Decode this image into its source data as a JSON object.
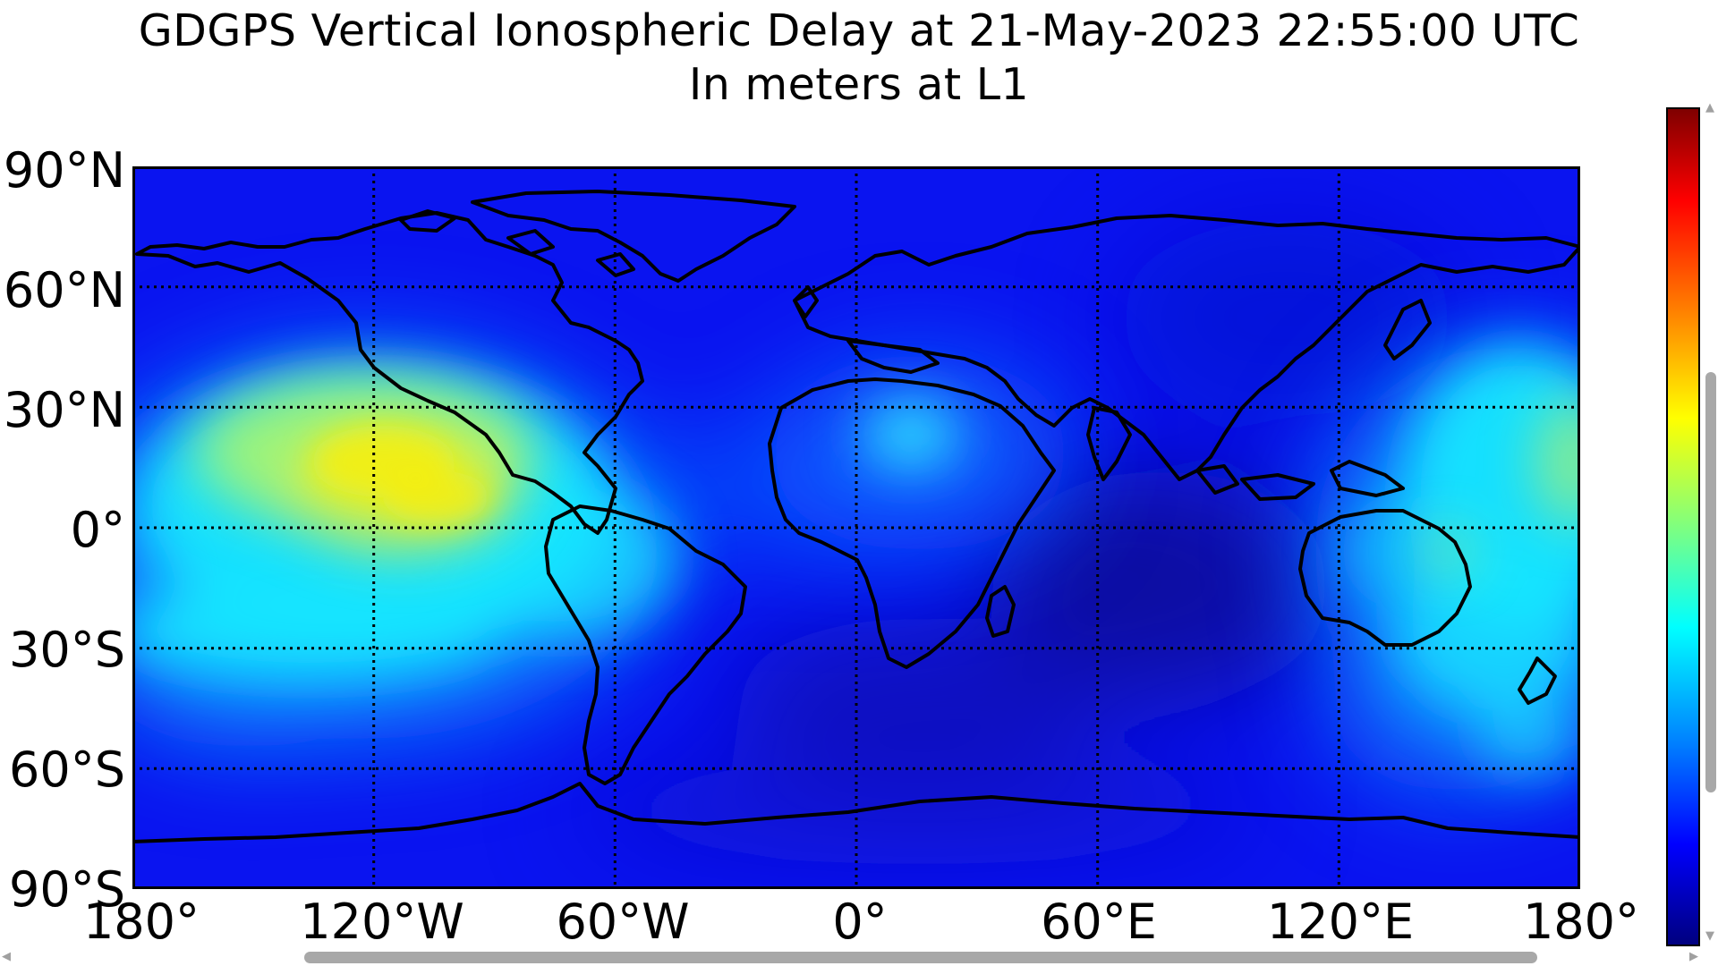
{
  "title": {
    "line1": "GDGPS Vertical Ionospheric Delay at 21-May-2023 22:55:00 UTC",
    "line2": "In meters at L1"
  },
  "axes": {
    "y_ticks": [
      "90°N",
      "60°N",
      "30°N",
      "0°",
      "30°S",
      "60°S",
      "90°S"
    ],
    "x_ticks": [
      "180°",
      "120°W",
      "60°W",
      "0°",
      "60°E",
      "120°E",
      "180°"
    ],
    "lat_range": [
      -90,
      90
    ],
    "lon_range": [
      -180,
      180
    ],
    "grid": "dotted"
  },
  "colorbar": {
    "colormap": "jet",
    "orientation": "vertical",
    "placement": "right",
    "tick_labels_visible": false
  },
  "map_colors": {
    "land_outline": "#000000",
    "background_low": "#0a0ff0",
    "high": "#f6ee0a"
  },
  "scrollbars": {
    "vertical": true,
    "horizontal": true
  }
}
